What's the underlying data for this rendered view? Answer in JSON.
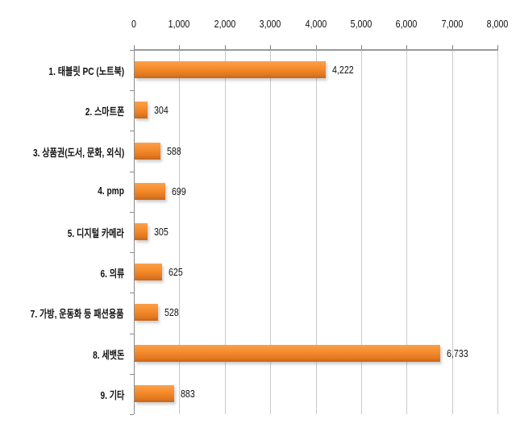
{
  "chart_data": {
    "type": "bar",
    "orientation": "horizontal",
    "title": "",
    "xlabel": "",
    "ylabel": "",
    "xlim": [
      0,
      8000
    ],
    "x_ticks": [
      "0",
      "1,000",
      "2,000",
      "3,000",
      "4,000",
      "5,000",
      "6,000",
      "7,000",
      "8,000"
    ],
    "x_tick_values": [
      0,
      1000,
      2000,
      3000,
      4000,
      5000,
      6000,
      7000,
      8000
    ],
    "axis_position": "top",
    "grid": true,
    "legend": null,
    "categories": [
      "1. 태블릿 PC (노트북)",
      "2. 스마트폰",
      "3. 상품권(도서, 문화, 외식)",
      "4. pmp",
      "5. 디지털 카메라",
      "6. 의류",
      "7. 가방, 운동화 등 패션용품",
      "8. 세뱃돈",
      "9. 기타"
    ],
    "values": [
      4222,
      304,
      588,
      699,
      305,
      625,
      528,
      6733,
      883
    ],
    "value_labels": [
      "4,222",
      "304",
      "588",
      "699",
      "305",
      "625",
      "528",
      "6,733",
      "883"
    ],
    "bar_color": "#F58A2A"
  }
}
